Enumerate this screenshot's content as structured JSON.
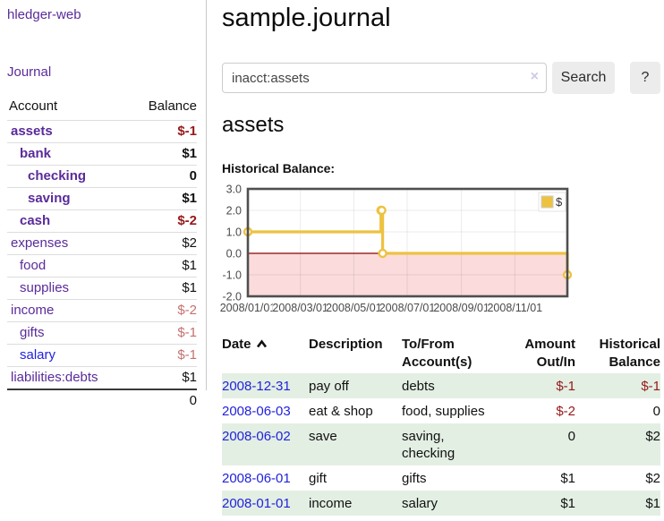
{
  "app": {
    "brand": "hledger-web"
  },
  "sidebar": {
    "journal_link": "Journal",
    "accounts_header": {
      "account": "Account",
      "balance": "Balance"
    },
    "accounts": [
      {
        "name": "assets",
        "indent": 1,
        "bold": true,
        "balance": "$-1",
        "balance_tone": "neg-dark"
      },
      {
        "name": "bank",
        "indent": 2,
        "bold": true,
        "balance": "$1",
        "balance_tone": "pos"
      },
      {
        "name": "checking",
        "indent": 3,
        "bold": true,
        "balance": "0",
        "balance_tone": "pos"
      },
      {
        "name": "saving",
        "indent": 3,
        "bold": true,
        "balance": "$1",
        "balance_tone": "pos"
      },
      {
        "name": "cash",
        "indent": 2,
        "bold": true,
        "balance": "$-2",
        "balance_tone": "neg-dark"
      },
      {
        "name": "expenses",
        "indent": 1,
        "bold": false,
        "balance": "$2",
        "balance_tone": "pos"
      },
      {
        "name": "food",
        "indent": 2,
        "bold": false,
        "balance": "$1",
        "balance_tone": "pos"
      },
      {
        "name": "supplies",
        "indent": 2,
        "bold": false,
        "balance": "$1",
        "balance_tone": "pos"
      },
      {
        "name": "income",
        "indent": 1,
        "bold": false,
        "balance": "$-2",
        "balance_tone": "neg-light"
      },
      {
        "name": "gifts",
        "indent": 2,
        "bold": false,
        "balance": "$-1",
        "balance_tone": "neg-light"
      },
      {
        "name": "salary",
        "indent": 2,
        "bold": false,
        "balance": "$-1",
        "balance_tone": "neg-light",
        "link_tone": "blue"
      },
      {
        "name": "liabilities:debts",
        "indent": 1,
        "bold": false,
        "balance": "$1",
        "balance_tone": "pos"
      }
    ],
    "total": "0"
  },
  "main": {
    "title": "sample.journal",
    "search": {
      "value": "inacct:assets",
      "clear_icon": "×",
      "search_button": "Search",
      "help_button": "?"
    },
    "account_heading": "assets",
    "chart_title": "Historical Balance:"
  },
  "chart_data": {
    "type": "line",
    "title": "Historical Balance:",
    "step": true,
    "x_range": [
      "2008-01-01",
      "2008-12-31"
    ],
    "y_range": [
      -2.0,
      3.0
    ],
    "x_ticks": [
      "2008/01/01",
      "2008/03/01",
      "2008/05/01",
      "2008/07/01",
      "2008/09/01",
      "2008/11/01"
    ],
    "y_ticks": [
      3.0,
      2.0,
      1.0,
      0.0,
      -1.0,
      -2.0
    ],
    "series": [
      {
        "name": "$",
        "color": "#EDC240",
        "points": [
          [
            "2008-01-01",
            1
          ],
          [
            "2008-06-01",
            2
          ],
          [
            "2008-06-02",
            2
          ],
          [
            "2008-06-03",
            0
          ],
          [
            "2008-12-31",
            -1
          ]
        ]
      }
    ],
    "negative_region_fill": "#fbdbdb",
    "zero_line_color": "#8b0000",
    "grid": true,
    "legend_position": "top-right"
  },
  "register": {
    "headers": [
      "Date",
      "Description",
      "To/From Account(s)",
      "Amount Out/In",
      "Historical Balance"
    ],
    "rows": [
      {
        "date": "2008-12-31",
        "description": "pay off",
        "accounts": "debts",
        "amount": "$-1",
        "balance": "$-1",
        "amount_negative": true,
        "balance_negative": true,
        "shaded": true
      },
      {
        "date": "2008-06-03",
        "description": "eat & shop",
        "accounts": "food, supplies",
        "amount": "$-2",
        "balance": "0",
        "amount_negative": true,
        "balance_negative": false,
        "shaded": false
      },
      {
        "date": "2008-06-02",
        "description": "save",
        "accounts": "saving, checking",
        "amount": "0",
        "balance": "$2",
        "amount_negative": false,
        "balance_negative": false,
        "shaded": true
      },
      {
        "date": "2008-06-01",
        "description": "gift",
        "accounts": "gifts",
        "amount": "$1",
        "balance": "$2",
        "amount_negative": false,
        "balance_negative": false,
        "shaded": false
      },
      {
        "date": "2008-01-01",
        "description": "income",
        "accounts": "salary",
        "amount": "$1",
        "balance": "$1",
        "amount_negative": false,
        "balance_negative": false,
        "shaded": true
      }
    ]
  }
}
